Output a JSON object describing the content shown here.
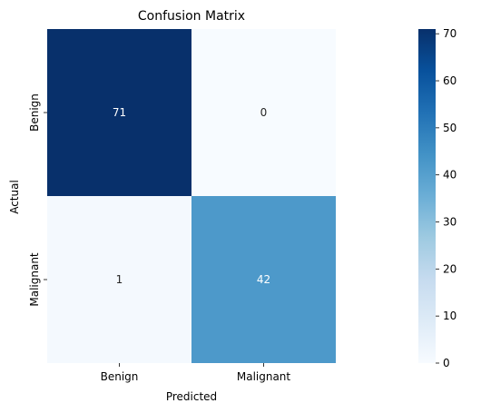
{
  "chart_data": {
    "type": "heatmap",
    "title": "Confusion Matrix",
    "xlabel": "Predicted",
    "ylabel": "Actual",
    "x_categories": [
      "Benign",
      "Malignant"
    ],
    "y_categories": [
      "Benign",
      "Malignant"
    ],
    "values": [
      [
        71,
        0
      ],
      [
        1,
        42
      ]
    ],
    "colormap": "Blues",
    "colorbar": {
      "range": [
        0,
        71
      ],
      "ticks": [
        0,
        10,
        20,
        30,
        40,
        50,
        60,
        70
      ]
    },
    "colors": {
      "low": "#f7fbff",
      "high": "#08306b",
      "text_dark": "#262626",
      "text_light": "#ffffff"
    }
  }
}
